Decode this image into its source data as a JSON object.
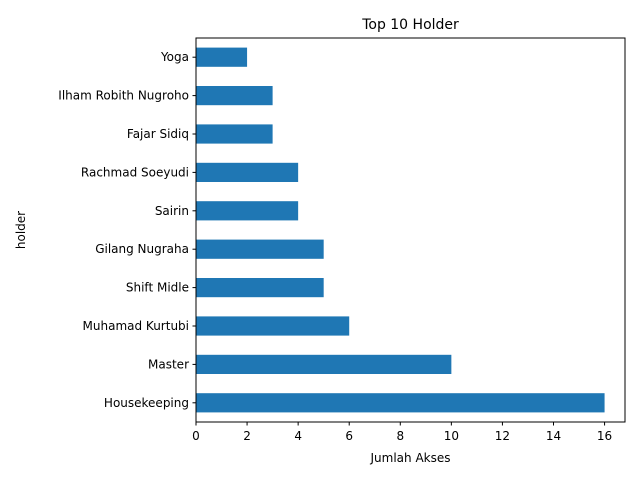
{
  "chart_data": {
    "type": "bar",
    "orientation": "horizontal",
    "title": "Top 10 Holder",
    "xlabel": "Jumlah Akses",
    "ylabel": "holder",
    "categories": [
      "Housekeeping",
      "Master",
      "Muhamad Kurtubi",
      "Shift Midle",
      "Gilang Nugraha",
      "Sairin",
      "Rachmad Soeyudi",
      "Fajar Sidiq",
      "Ilham Robith Nugroho",
      "Yoga"
    ],
    "values": [
      16,
      10,
      6,
      5,
      5,
      4,
      4,
      3,
      3,
      2
    ],
    "xlim": [
      0,
      16.8
    ],
    "xticks": [
      0,
      2,
      4,
      6,
      8,
      10,
      12,
      14,
      16
    ],
    "bar_color": "#1f77b4",
    "grid": false,
    "legend": "none"
  }
}
